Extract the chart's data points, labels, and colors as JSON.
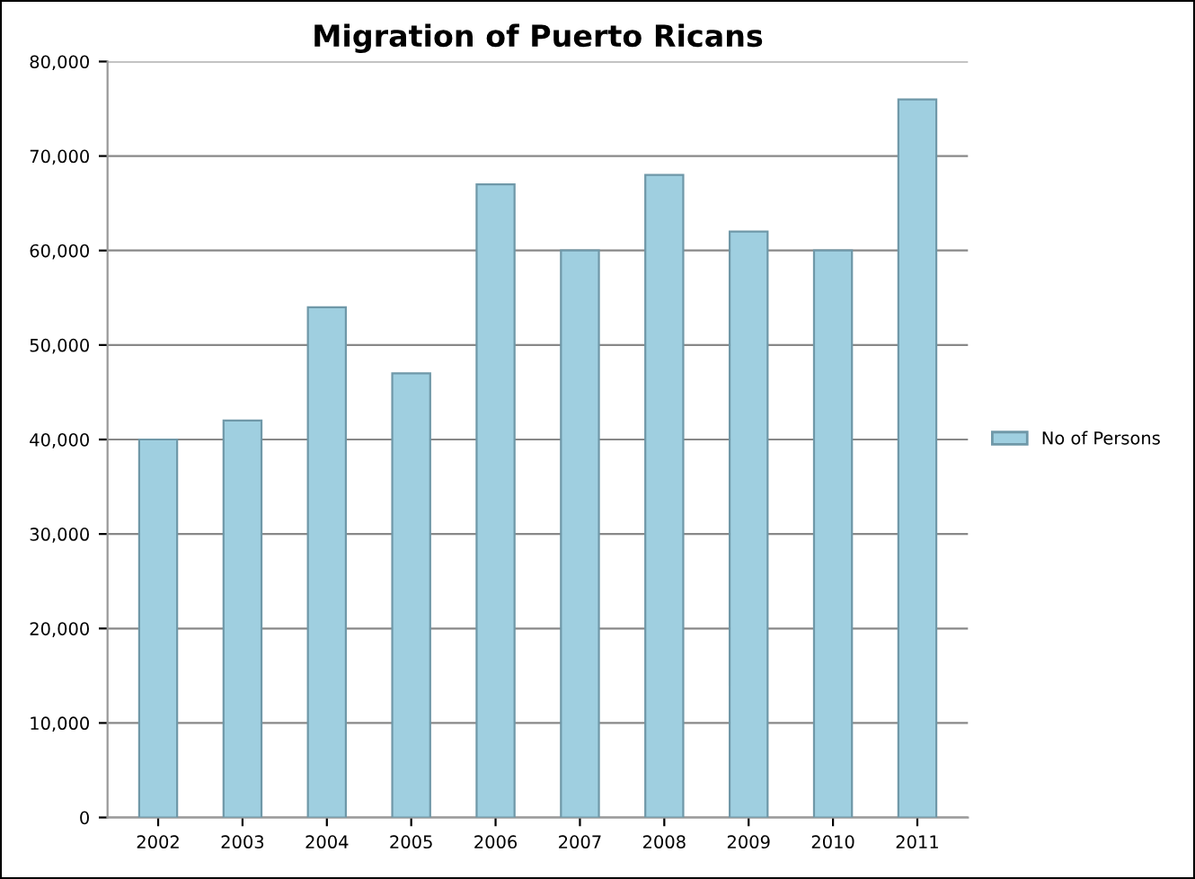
{
  "chart_data": {
    "type": "bar",
    "title": "Migration of Puerto Ricans",
    "categories": [
      "2002",
      "2003",
      "2004",
      "2005",
      "2006",
      "2007",
      "2008",
      "2009",
      "2010",
      "2011"
    ],
    "series": [
      {
        "name": "No of Persons",
        "color": "#9fcfe0",
        "values": [
          40000,
          42000,
          54000,
          47000,
          67000,
          60000,
          68000,
          62000,
          60000,
          76000
        ]
      }
    ],
    "ylim": [
      0,
      80000
    ],
    "yticks": [
      {
        "value": 0,
        "label": "0"
      },
      {
        "value": 10000,
        "label": "10,000"
      },
      {
        "value": 20000,
        "label": "20,000"
      },
      {
        "value": 30000,
        "label": "30,000"
      },
      {
        "value": 40000,
        "label": "40,000"
      },
      {
        "value": 50000,
        "label": "50,000"
      },
      {
        "value": 60000,
        "label": "60,000"
      },
      {
        "value": 70000,
        "label": "70,000"
      },
      {
        "value": 80000,
        "label": "80,000"
      }
    ],
    "grid": "y",
    "legend": "right"
  }
}
